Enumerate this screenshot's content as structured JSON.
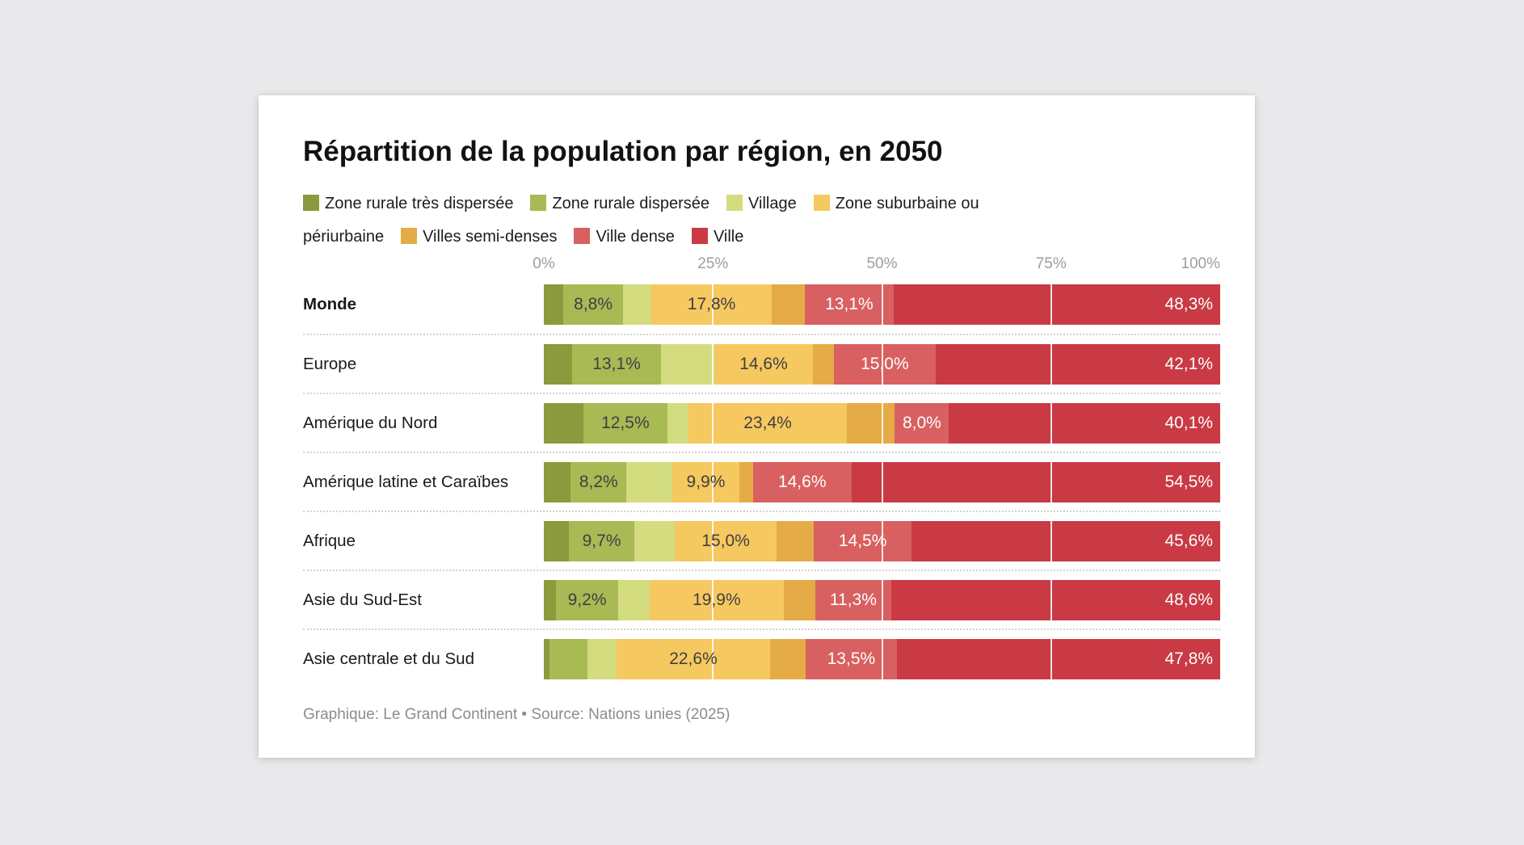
{
  "title": "Répartition de la population par région, en 2050",
  "footer": "Graphique: Le Grand Continent • Source: Nations unies (2025)",
  "axis": {
    "ticks": [
      {
        "label": "0%",
        "position": 0
      },
      {
        "label": "25%",
        "position": 25
      },
      {
        "label": "50%",
        "position": 50
      },
      {
        "label": "75%",
        "position": 75
      },
      {
        "label": "100%",
        "position": 100
      }
    ]
  },
  "chart_data": {
    "type": "bar",
    "stacked": true,
    "orientation": "horizontal",
    "unit": "%",
    "xlim": [
      0,
      100
    ],
    "grid": "vertical white lines at 25/50/75 over bars",
    "legend_position": "top",
    "title": "Répartition de la population par région, en 2050",
    "legend": [
      {
        "label": "Zone rurale très dispersée",
        "color": "#8a9a3c"
      },
      {
        "label": "Zone rurale dispersée",
        "color": "#a9b954"
      },
      {
        "label": "Village",
        "color": "#d3dc7f"
      },
      {
        "label": "Zone suburbaine ou périurbaine",
        "color": "#f6c860"
      },
      {
        "label": "Villes semi-denses",
        "color": "#e5ab47"
      },
      {
        "label": "Ville dense",
        "color": "#d96060"
      },
      {
        "label": "Ville",
        "color": "#c93a45"
      }
    ],
    "gridlines": [
      25,
      50,
      75
    ],
    "label_colors": {
      "dark": "#404040",
      "light": "#ffffff"
    },
    "rows": [
      {
        "label": "Monde",
        "bold": true,
        "values": [
          2.9,
          8.8,
          4.2,
          17.8,
          4.9,
          13.1,
          48.3
        ],
        "value_labels": [
          null,
          "8,8%",
          null,
          "17,8%",
          null,
          "13,1%",
          "48,3%"
        ]
      },
      {
        "label": "Europe",
        "bold": false,
        "values": [
          4.2,
          13.1,
          7.9,
          14.6,
          3.1,
          15.0,
          42.1
        ],
        "value_labels": [
          null,
          "13,1%",
          null,
          "14,6%",
          null,
          "15,0%",
          "42,1%"
        ]
      },
      {
        "label": "Amérique du Nord",
        "bold": false,
        "values": [
          5.8,
          12.5,
          3.1,
          23.4,
          7.1,
          8.0,
          40.1
        ],
        "value_labels": [
          null,
          "12,5%",
          null,
          "23,4%",
          null,
          "8,0%",
          "40,1%"
        ]
      },
      {
        "label": "Amérique latine et Caraïbes",
        "bold": false,
        "values": [
          4.0,
          8.2,
          6.8,
          9.9,
          2.0,
          14.6,
          54.5
        ],
        "value_labels": [
          null,
          "8,2%",
          null,
          "9,9%",
          null,
          "14,6%",
          "54,5%"
        ]
      },
      {
        "label": "Afrique",
        "bold": false,
        "values": [
          3.7,
          9.7,
          6.0,
          15.0,
          5.5,
          14.5,
          45.6
        ],
        "value_labels": [
          null,
          "9,7%",
          null,
          "15,0%",
          null,
          "14,5%",
          "45,6%"
        ]
      },
      {
        "label": "Asie du Sud-Est",
        "bold": false,
        "values": [
          1.8,
          9.2,
          4.6,
          19.9,
          4.6,
          11.3,
          48.6
        ],
        "value_labels": [
          null,
          "9,2%",
          null,
          "19,9%",
          null,
          "11,3%",
          "48,6%"
        ]
      },
      {
        "label": "Asie centrale et du Sud",
        "bold": false,
        "values": [
          0.8,
          5.6,
          4.4,
          22.6,
          5.3,
          13.5,
          47.8
        ],
        "value_labels": [
          null,
          null,
          null,
          "22,6%",
          null,
          "13,5%",
          "47,8%"
        ]
      }
    ]
  }
}
